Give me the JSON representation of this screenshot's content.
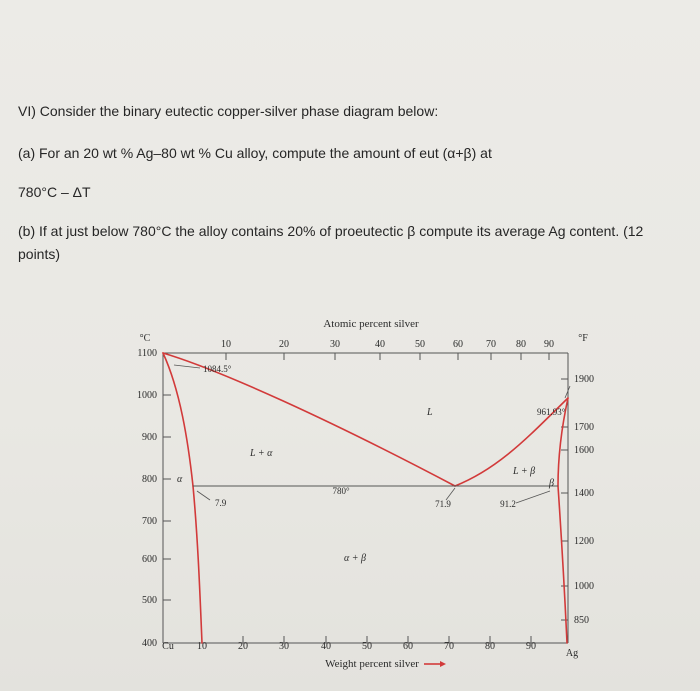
{
  "question": {
    "heading": "VI) Consider the binary eutectic copper-silver phase diagram below:",
    "part_a_line1": "(a) For an 20 wt % Ag–80 wt % Cu alloy, compute the amount of eut (α+β) at",
    "part_a_line2": "780°C – ΔT",
    "part_b_line1": "(b) If at just below 780°C the alloy contains 20% of proeutectic β compute its average Ag content. (12",
    "part_b_line2": "points)"
  },
  "diagram": {
    "top_axis_title": "Atomic percent silver",
    "bottom_axis_title": "Weight percent silver",
    "left_unit": "°C",
    "right_unit": "°F",
    "left_end_label": "Cu",
    "right_end_label": "Ag",
    "colors": {
      "phase_line": "#d23a3a",
      "axis": "#555555",
      "arrow": "#d23a3a"
    },
    "bottom_ticks": [
      "10",
      "20",
      "30",
      "40",
      "50",
      "60",
      "70",
      "80",
      "90"
    ],
    "top_ticks": [
      "10",
      "20",
      "30",
      "40",
      "50",
      "60",
      "70",
      "80",
      "90"
    ],
    "left_ticks": [
      "1100",
      "1000",
      "900",
      "800",
      "700",
      "600",
      "500",
      "400"
    ],
    "right_ticks": [
      "1900",
      "1700",
      "1600",
      "1400",
      "1200",
      "1000",
      "850"
    ],
    "labels": {
      "cu_melt": "1084.5°",
      "ag_melt": "961.93°",
      "eutectic_temp": "780°",
      "alpha_limit": "7.9",
      "eutectic_comp": "71.9",
      "beta_limit": "91.2",
      "liquid": "L",
      "l_alpha": "L + α",
      "l_beta": "L + β",
      "alpha": "α",
      "beta": "β",
      "alpha_beta": "α + β"
    }
  }
}
